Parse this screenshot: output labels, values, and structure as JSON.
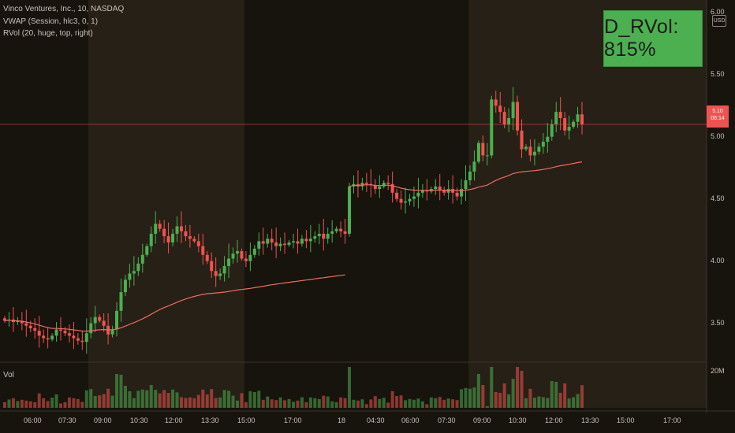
{
  "legend": {
    "symbol": "Vinco Ventures, Inc., 10, NASDAQ",
    "vwap": "VWAP (Session, hlc3, 0, 1)",
    "rvol": "RVol (20, huge, top, right)"
  },
  "volume_label": "Vol",
  "rvol_box": {
    "text": "D_RVol: 815%",
    "color": "#4caf50"
  },
  "currency_badge": "USD",
  "price_axis": {
    "labels": [
      "6.00",
      "5.50",
      "5.00",
      "4.50",
      "4.00",
      "3.50"
    ],
    "volume_label": "20M"
  },
  "last_price_tag": {
    "price": "5.10",
    "countdown": "06:14",
    "color": "#ef5350"
  },
  "time_axis": {
    "labels": [
      "06:00",
      "07:30",
      "09:00",
      "10:30",
      "12:00",
      "13:30",
      "15:00",
      "17:00",
      "18",
      "04:30",
      "06:00",
      "07:30",
      "09:00",
      "10:30",
      "12:00",
      "13:30",
      "15:00",
      "17:00"
    ]
  },
  "colors": {
    "up": "#26a69a",
    "up_bright": "#4caf50",
    "down": "#ef5350",
    "vwap": "#f06b5f",
    "session_shade": "#2e2519"
  },
  "chart_data": {
    "type": "candlestick",
    "title": "Vinco Ventures, Inc., 10, NASDAQ",
    "ylim": [
      3.2,
      6.1
    ],
    "y_ticks": [
      3.5,
      4.0,
      4.5,
      5.0,
      5.5,
      6.0
    ],
    "closes": [
      3.52,
      3.53,
      3.51,
      3.52,
      3.5,
      3.48,
      3.46,
      3.44,
      3.4,
      3.38,
      3.37,
      3.4,
      3.45,
      3.44,
      3.42,
      3.4,
      3.38,
      3.36,
      3.35,
      3.42,
      3.5,
      3.55,
      3.52,
      3.48,
      3.41,
      3.45,
      3.6,
      3.75,
      3.85,
      3.9,
      3.92,
      3.98,
      4.05,
      4.12,
      4.22,
      4.3,
      4.26,
      4.2,
      4.15,
      4.22,
      4.28,
      4.24,
      4.2,
      4.18,
      4.16,
      4.12,
      4.05,
      4.0,
      3.92,
      3.88,
      3.9,
      3.96,
      4.02,
      4.06,
      4.08,
      4.02,
      4.0,
      4.05,
      4.1,
      4.16,
      4.14,
      4.18,
      4.15,
      4.12,
      4.14,
      4.13,
      4.15,
      4.16,
      4.14,
      4.18,
      4.16,
      4.18,
      4.2,
      4.22,
      4.18,
      4.22,
      4.24,
      4.26,
      4.24,
      4.22,
      4.6,
      4.62,
      4.6,
      4.63,
      4.62,
      4.61,
      4.58,
      4.6,
      4.63,
      4.62,
      4.55,
      4.5,
      4.47,
      4.48,
      4.5,
      4.52,
      4.55,
      4.57,
      4.56,
      4.58,
      4.6,
      4.57,
      4.55,
      4.58,
      4.55,
      4.52,
      4.58,
      4.65,
      4.72,
      4.8,
      4.95,
      4.85,
      4.85,
      5.3,
      5.25,
      5.2,
      5.1,
      5.15,
      5.28,
      5.05,
      4.9,
      4.92,
      4.85,
      4.88,
      4.92,
      4.96,
      5.0,
      5.1,
      5.2,
      5.15,
      5.05,
      5.08,
      5.12,
      5.18,
      5.1
    ],
    "volume_ylim": [
      0,
      20000000
    ]
  }
}
